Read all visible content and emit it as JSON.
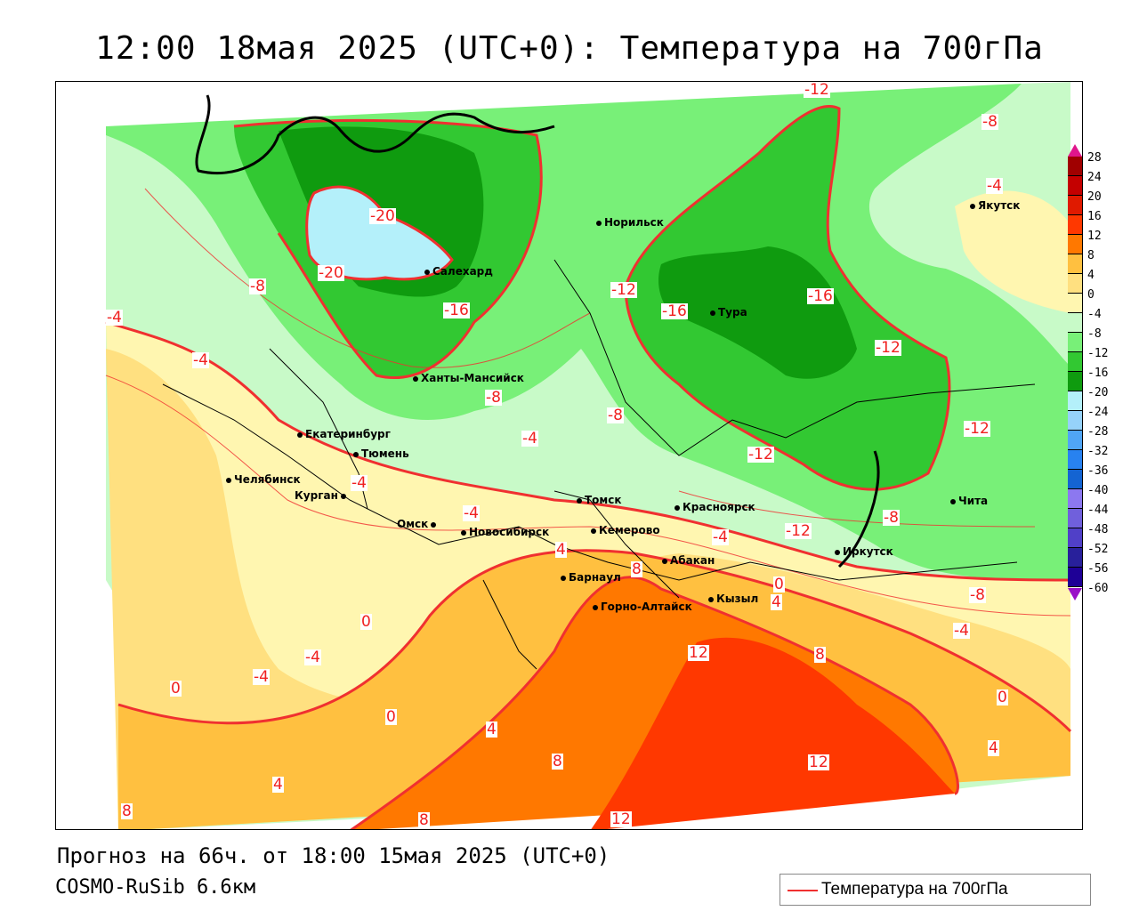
{
  "title": "12:00 18мая 2025 (UTC+0): Температура на 700гПа",
  "footer": {
    "forecast": "Прогноз на 66ч. от 18:00 15мая 2025 (UTC+0)",
    "model": "COSMO-RuSib 6.6км"
  },
  "legend": {
    "label": "Температура на 700гПа",
    "line_color": "#f03030"
  },
  "colorbar": {
    "labels": [
      "28",
      "24",
      "20",
      "16",
      "12",
      "8",
      "4",
      "0",
      "-4",
      "-8",
      "-12",
      "-16",
      "-20",
      "-24",
      "-28",
      "-32",
      "-36",
      "-40",
      "-44",
      "-48",
      "-52",
      "-56",
      "-60"
    ],
    "colors": [
      "#a00000",
      "#c40000",
      "#e01a00",
      "#ff3800",
      "#ff7800",
      "#ffc040",
      "#ffe080",
      "#fff6b0",
      "#c8fac8",
      "#78f078",
      "#32c832",
      "#0f9b0f",
      "#b4f0fa",
      "#96d2fa",
      "#50a5f5",
      "#2882f0",
      "#1464d2",
      "#8c78f0",
      "#7060dc",
      "#5040c8",
      "#28209b",
      "#1e0096"
    ],
    "top_arrow_color": "#e0168c",
    "bottom_arrow_color": "#9a10c8"
  },
  "cities": [
    "Норильск",
    "Салехард",
    "Тура",
    "Якутск",
    "Ханты-Мансийск",
    "Екатеринбург",
    "Тюмень",
    "Челябинск",
    "Курган",
    "Омск",
    "Новосибирск",
    "Томск",
    "Кемерово",
    "Красноярск",
    "Абакан",
    "Барнаул",
    "Горно-Алтайск",
    "Кызыл",
    "Иркутск",
    "Чита"
  ],
  "contour_labels": [
    "-12",
    "-8",
    "-4",
    "-20",
    "-20",
    "-8",
    "-16",
    "-12",
    "-16",
    "-16",
    "-12",
    "-4",
    "-4",
    "-8",
    "-8",
    "-4",
    "-12",
    "-12",
    "-4",
    "-4",
    "-12",
    "-8",
    "-8",
    "-4",
    "0",
    "4",
    "-4",
    "4",
    "8",
    "0",
    "-4",
    "-4",
    "0",
    "0",
    "4",
    "12",
    "8",
    "12",
    "0",
    "4",
    "8",
    "4",
    "8",
    "12",
    "8"
  ]
}
